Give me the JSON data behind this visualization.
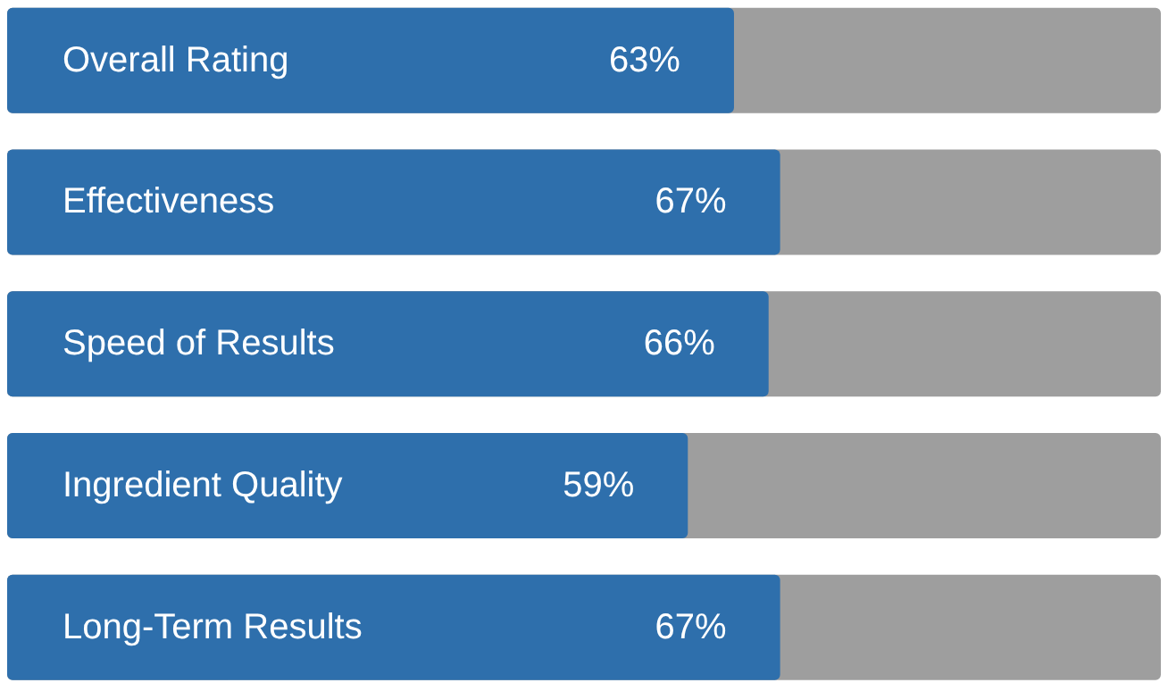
{
  "chart_data": {
    "type": "bar",
    "orientation": "horizontal",
    "categories": [
      "Overall Rating",
      "Effectiveness",
      "Speed of Results",
      "Ingredient Quality",
      "Long-Term Results"
    ],
    "values": [
      63,
      67,
      66,
      59,
      67
    ],
    "value_labels": [
      "63%",
      "67%",
      "66%",
      "59%",
      "67%"
    ],
    "color": "#2e6fac",
    "xlim": [
      0,
      100
    ],
    "tick_labels": false
  }
}
